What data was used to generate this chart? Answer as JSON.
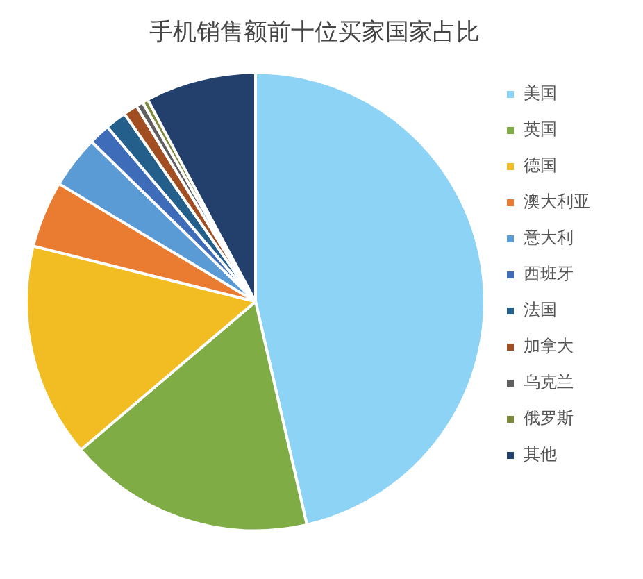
{
  "chart_data": {
    "type": "pie",
    "title": "手机销售额前十位买家国家占比",
    "categories": [
      "美国",
      "英国",
      "德国",
      "澳大利亚",
      "意大利",
      "西班牙",
      "法国",
      "加拿大",
      "乌克兰",
      "俄罗斯",
      "其他"
    ],
    "values": [
      46.4,
      17.4,
      15.1,
      4.7,
      3.7,
      1.5,
      1.5,
      1.0,
      0.5,
      0.4,
      7.8
    ],
    "colors": [
      "#8dd3f5",
      "#7fac45",
      "#f2bd22",
      "#ea7c32",
      "#5b9bd5",
      "#3f6cb8",
      "#245e8a",
      "#a04e22",
      "#5f5f5f",
      "#7a8a3a",
      "#233f6b"
    ],
    "legend": "right"
  }
}
